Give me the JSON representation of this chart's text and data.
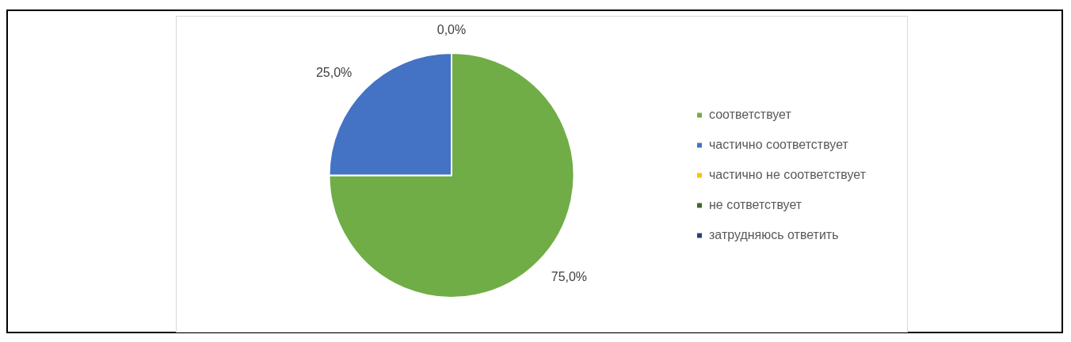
{
  "chart_data": {
    "type": "pie",
    "categories": [
      "соответствует",
      "частично соответствует",
      "частично не соответствует",
      "не сответствует",
      "затрудняюсь ответить"
    ],
    "values": [
      75,
      25,
      0,
      0,
      0
    ],
    "colors": [
      "#70ad47",
      "#4472c4",
      "#ffc000",
      "#43682b",
      "#264478"
    ],
    "value_labels": [
      "75,0%",
      "25,0%",
      "0,0%",
      null,
      null
    ],
    "legend": "right"
  }
}
